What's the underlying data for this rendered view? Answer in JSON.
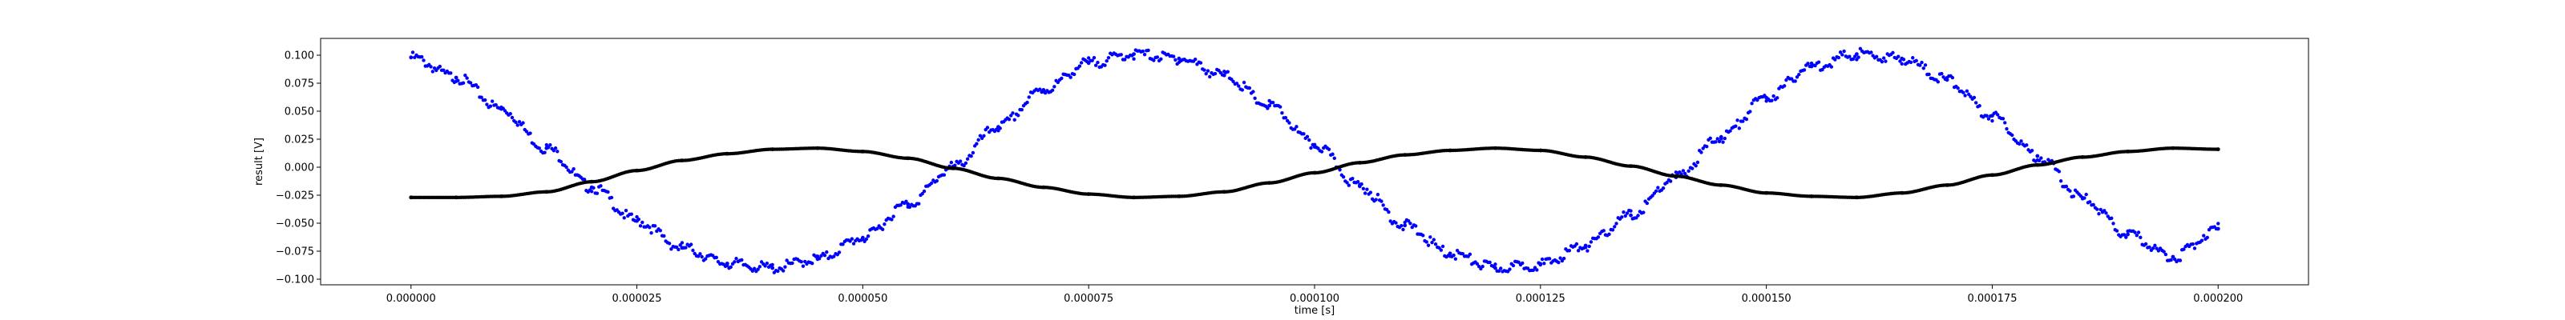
{
  "chart_data": {
    "type": "scatter",
    "title": "",
    "xlabel": "time [s]",
    "ylabel": "result [V]",
    "xlim": [
      -1e-05,
      0.00021
    ],
    "ylim": [
      -0.105,
      0.115
    ],
    "grid": false,
    "legend": "none",
    "x_ticks": [
      0,
      2.5e-05,
      5e-05,
      7.5e-05,
      0.0001,
      0.000125,
      0.00015,
      0.000175,
      0.0002
    ],
    "x_tick_labels": [
      "0.000000",
      "0.000025",
      "0.000050",
      "0.000075",
      "0.000100",
      "0.000125",
      "0.000150",
      "0.000175",
      "0.000200"
    ],
    "y_ticks": [
      -0.1,
      -0.075,
      -0.05,
      -0.025,
      0,
      0.025,
      0.05,
      0.075,
      0.1
    ],
    "y_tick_labels": [
      "−0.100",
      "−0.075",
      "−0.050",
      "−0.025",
      "0.000",
      "0.025",
      "0.050",
      "0.075",
      "0.100"
    ],
    "series": [
      {
        "color": "#0000ff",
        "marker": "dot",
        "x": [
          0,
          5e-06,
          1e-05,
          1.5e-05,
          2e-05,
          2.5e-05,
          3e-05,
          3.5e-05,
          4e-05,
          4.5e-05,
          5e-05,
          5.5e-05,
          6e-05,
          6.5e-05,
          7e-05,
          7.5e-05,
          8e-05,
          8.5e-05,
          9e-05,
          9.5e-05,
          0.0001,
          0.000105,
          0.00011,
          0.000115,
          0.00012,
          0.000125,
          0.00013,
          0.000135,
          0.00014,
          0.000145,
          0.00015,
          0.000155,
          0.00016,
          0.000165,
          0.00017,
          0.000175,
          0.00018,
          0.000185,
          0.00019,
          0.000195,
          0.0002
        ],
        "y": [
          0.098,
          0.08,
          0.052,
          0.017,
          -0.018,
          -0.048,
          -0.072,
          -0.086,
          -0.09,
          -0.082,
          -0.063,
          -0.033,
          0,
          0.036,
          0.069,
          0.093,
          0.101,
          0.097,
          0.082,
          0.055,
          0.02,
          -0.017,
          -0.052,
          -0.077,
          -0.09,
          -0.087,
          -0.07,
          -0.043,
          -0.009,
          0.027,
          0.062,
          0.09,
          0.101,
          0.097,
          0.078,
          0.046,
          0.01,
          -0.028,
          -0.06,
          -0.08,
          -0.055
        ]
      },
      {
        "color": "#000000",
        "marker": "dot",
        "x": [
          0,
          5e-06,
          1e-05,
          1.5e-05,
          2e-05,
          2.5e-05,
          3e-05,
          3.5e-05,
          4e-05,
          4.5e-05,
          5e-05,
          5.5e-05,
          6e-05,
          6.5e-05,
          7e-05,
          7.5e-05,
          8e-05,
          8.5e-05,
          9e-05,
          9.5e-05,
          0.0001,
          0.000105,
          0.00011,
          0.000115,
          0.00012,
          0.000125,
          0.00013,
          0.000135,
          0.00014,
          0.000145,
          0.00015,
          0.000155,
          0.00016,
          0.000165,
          0.00017,
          0.000175,
          0.00018,
          0.000185,
          0.00019,
          0.000195,
          0.0002
        ],
        "y": [
          -0.027,
          -0.027,
          -0.026,
          -0.022,
          -0.013,
          -0.003,
          0.006,
          0.012,
          0.016,
          0.017,
          0.014,
          0.008,
          -0.001,
          -0.01,
          -0.018,
          -0.024,
          -0.027,
          -0.026,
          -0.022,
          -0.014,
          -0.005,
          0.004,
          0.011,
          0.015,
          0.017,
          0.015,
          0.009,
          0.001,
          -0.008,
          -0.016,
          -0.023,
          -0.026,
          -0.027,
          -0.023,
          -0.016,
          -0.007,
          0.002,
          0.009,
          0.014,
          0.017,
          0.016
        ]
      }
    ]
  }
}
